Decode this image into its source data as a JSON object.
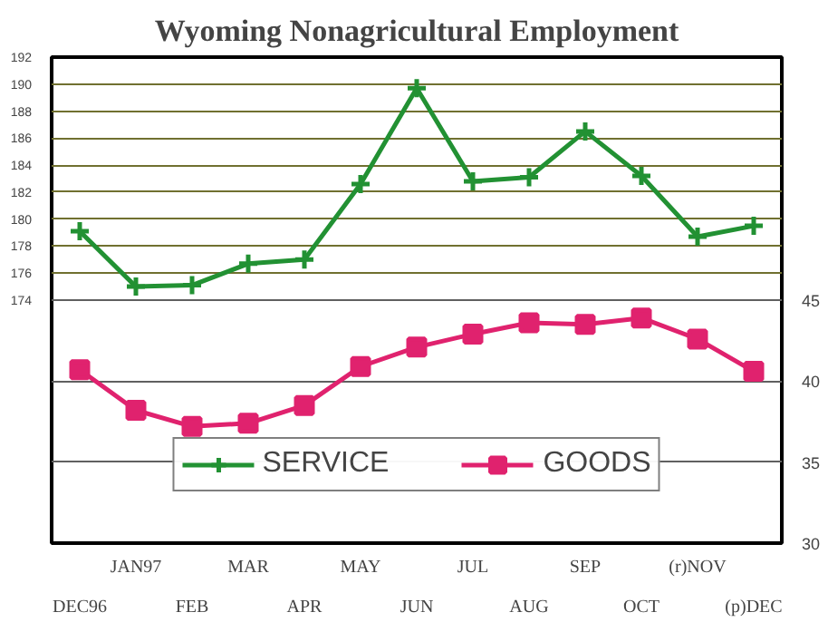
{
  "chart_data": {
    "type": "line",
    "title": "Wyoming Nonagricultural Employment",
    "categories": [
      "DEC96",
      "JAN97",
      "FEB",
      "MAR",
      "APR",
      "MAY",
      "JUN",
      "JUL",
      "AUG",
      "SEP",
      "OCT",
      "(r)NOV",
      "(p)DEC"
    ],
    "series": [
      {
        "name": "SERVICE",
        "color": "#229133",
        "marker": "cross",
        "values": [
          179.1,
          175.0,
          175.1,
          176.7,
          177.0,
          182.6,
          189.7,
          182.8,
          183.1,
          186.5,
          183.2,
          178.7,
          179.5
        ]
      },
      {
        "name": "GOODS",
        "color": "#e0226e",
        "marker": "square",
        "axis": "y2",
        "values": [
          40.7,
          38.2,
          37.2,
          37.4,
          38.5,
          40.9,
          42.1,
          42.9,
          43.6,
          43.5,
          43.9,
          42.6,
          40.6
        ]
      }
    ],
    "ylim": [
      156,
      192
    ],
    "yticks": [
      174,
      176,
      178,
      180,
      182,
      184,
      186,
      188,
      190,
      192
    ],
    "y2lim": [
      30,
      60
    ],
    "y2ticks": [
      30,
      35,
      40,
      45
    ],
    "grid": "y",
    "legend": "bottom",
    "line_style": "solid"
  }
}
